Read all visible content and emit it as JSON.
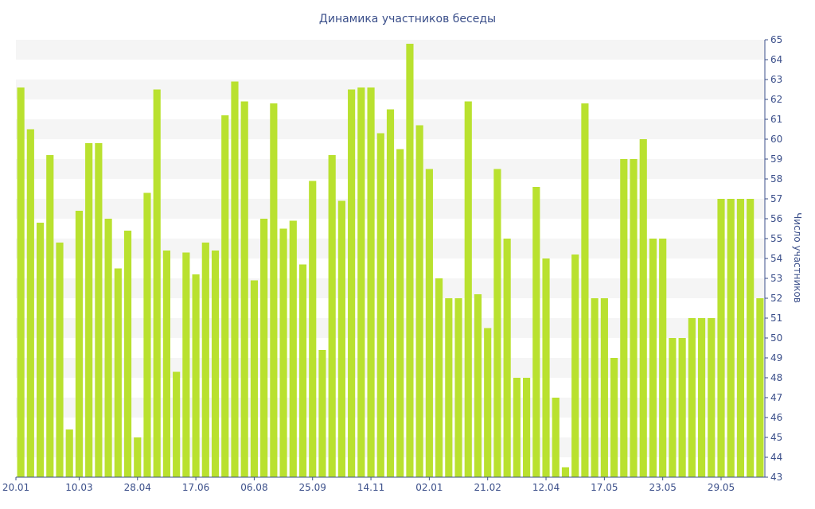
{
  "chart_data": {
    "type": "bar",
    "title": "Динамика участников беседы",
    "ylabel": "Число участников",
    "xlabel": "",
    "ylim": [
      43,
      65
    ],
    "y_ticks": [
      43,
      44,
      45,
      46,
      47,
      48,
      49,
      50,
      51,
      52,
      53,
      54,
      55,
      56,
      57,
      58,
      59,
      60,
      61,
      62,
      63,
      64,
      65
    ],
    "x_tick_labels": [
      "20.01",
      "10.03",
      "28.04",
      "17.06",
      "06.08",
      "25.09",
      "14.11",
      "02.01",
      "21.02",
      "12.04",
      "17.05",
      "23.05",
      "29.05"
    ],
    "x_tick_indices": [
      0,
      6,
      12,
      18,
      24,
      30,
      36,
      42,
      48,
      54,
      60,
      66,
      72
    ],
    "values": [
      62.6,
      60.5,
      55.8,
      59.2,
      54.8,
      45.4,
      56.4,
      59.8,
      59.8,
      56.0,
      53.5,
      55.4,
      45.0,
      57.3,
      62.5,
      54.4,
      48.3,
      54.3,
      53.2,
      54.8,
      54.4,
      61.2,
      62.9,
      61.9,
      52.9,
      56.0,
      61.8,
      55.5,
      55.9,
      53.7,
      57.9,
      49.4,
      59.2,
      56.9,
      62.5,
      62.6,
      62.6,
      60.3,
      61.5,
      59.5,
      64.8,
      60.7,
      58.5,
      53.0,
      52.0,
      52.0,
      61.9,
      52.2,
      50.5,
      58.5,
      55.0,
      48.0,
      48.0,
      57.6,
      54.0,
      47.0,
      43.5,
      54.2,
      61.8,
      52.0,
      52.0,
      49.0,
      59.0,
      59.0,
      60.0,
      55.0,
      55.0,
      50.0,
      50.0,
      51.0,
      51.0,
      51.0,
      57.0,
      57.0,
      57.0,
      57.0,
      52.0
    ],
    "grid": "horizontal bands",
    "colors": {
      "bar": "#b9e12f",
      "band": "#f5f5f5",
      "text": "#3b4f8a",
      "axis": "#3b4f8a"
    }
  }
}
